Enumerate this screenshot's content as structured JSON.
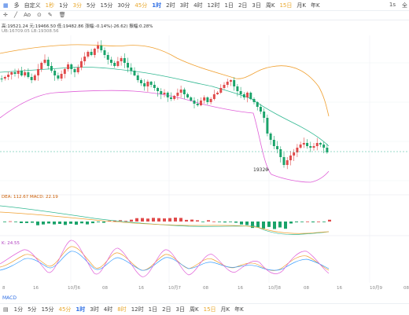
{
  "topbar": {
    "items": [
      {
        "label": "多",
        "cls": ""
      },
      {
        "label": "自定义",
        "cls": ""
      },
      {
        "label": "1秒",
        "cls": "hl"
      },
      {
        "label": "1分",
        "cls": ""
      },
      {
        "label": "3分",
        "cls": "hl"
      },
      {
        "label": "5分",
        "cls": ""
      },
      {
        "label": "15分",
        "cls": ""
      },
      {
        "label": "30分",
        "cls": ""
      },
      {
        "label": "45分",
        "cls": "hl"
      },
      {
        "label": "1时",
        "cls": "active"
      },
      {
        "label": "2时",
        "cls": ""
      },
      {
        "label": "3时",
        "cls": ""
      },
      {
        "label": "4时",
        "cls": ""
      },
      {
        "label": "12时",
        "cls": ""
      },
      {
        "label": "1日",
        "cls": ""
      },
      {
        "label": "2日",
        "cls": ""
      },
      {
        "label": "3日",
        "cls": ""
      },
      {
        "label": "周K",
        "cls": ""
      },
      {
        "label": "15日",
        "cls": "hl"
      },
      {
        "label": "月K",
        "cls": ""
      },
      {
        "label": "年K",
        "cls": ""
      }
    ],
    "right": [
      "1s",
      "全"
    ]
  },
  "toolbar": {
    "ao_label": "Ao"
  },
  "legend": {
    "ohlc": "高:19521.24  元:19466.50  低:19482.86  涨幅:-0.14%(-26.62)  振幅:0.28%",
    "boll": "UB:16709.05  LB:19308.56",
    "macd": "DEA: 112.67  MACD: 22.19",
    "kdj": "K: 24.55"
  },
  "annotations": {
    "low_label": "19320"
  },
  "xaxis": {
    "labels": [
      {
        "t": "8",
        "x": 3
      },
      {
        "t": "16",
        "x": 42
      },
      {
        "t": "10月6",
        "x": 86
      },
      {
        "t": "08",
        "x": 130
      },
      {
        "t": "16",
        "x": 176
      },
      {
        "t": "10月7",
        "x": 214
      },
      {
        "t": "08",
        "x": 258
      },
      {
        "t": "16",
        "x": 302
      },
      {
        "t": "10月8",
        "x": 341
      },
      {
        "t": "08",
        "x": 386
      },
      {
        "t": "16",
        "x": 428
      },
      {
        "t": "10月9",
        "x": 470
      },
      {
        "t": "08",
        "x": 513
      }
    ]
  },
  "indicator_tab": "MACD",
  "bottom": {
    "items": [
      {
        "label": "1分",
        "cls": ""
      },
      {
        "label": "5分",
        "cls": ""
      },
      {
        "label": "15分",
        "cls": ""
      },
      {
        "label": "45分",
        "cls": "hl"
      },
      {
        "label": "1时",
        "cls": "active"
      },
      {
        "label": "3时",
        "cls": ""
      },
      {
        "label": "4时",
        "cls": ""
      },
      {
        "label": "8时",
        "cls": "hl"
      },
      {
        "label": "12时",
        "cls": ""
      },
      {
        "label": "1日",
        "cls": ""
      },
      {
        "label": "2日",
        "cls": ""
      },
      {
        "label": "3日",
        "cls": ""
      },
      {
        "label": "周K",
        "cls": ""
      },
      {
        "label": "15日",
        "cls": "hl"
      },
      {
        "label": "月K",
        "cls": ""
      },
      {
        "label": "年K",
        "cls": ""
      }
    ]
  },
  "colors": {
    "up": "#e04a4a",
    "down": "#1aa36a",
    "ub": "#f0a030",
    "mid": "#32b892",
    "lb": "#e060d8",
    "accent": "#2f6fe4"
  }
}
